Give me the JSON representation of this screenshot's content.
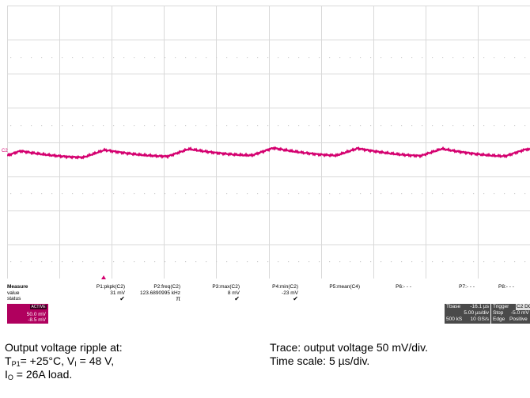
{
  "scope": {
    "channel_marker": "C2",
    "trace_color": "#d4006f",
    "grid_color": "#d9d9d9",
    "trigger_marker_color": "#d4006f"
  },
  "measure": {
    "header": "Measure",
    "row_labels": [
      "value",
      "status"
    ],
    "params": [
      {
        "name": "P1:pkpk(C2)",
        "value": "31 mV",
        "status": "✔"
      },
      {
        "name": "P2:freq(C2)",
        "value": "123.6890995 kHz",
        "status": "π"
      },
      {
        "name": "P3:max(C2)",
        "value": "8 mV",
        "status": "✔"
      },
      {
        "name": "P4:min(C2)",
        "value": "-23 mV",
        "status": "✔"
      },
      {
        "name": "P5:mean(C4)",
        "value": "",
        "status": ""
      },
      {
        "name": "P6:- - -",
        "value": "",
        "status": ""
      },
      {
        "name": "P7:- - -",
        "value": "",
        "status": ""
      },
      {
        "name": "P8:- - -",
        "value": "",
        "status": ""
      }
    ]
  },
  "channel_box": {
    "tag": "ACTIVE",
    "volts_div": "50.0 mV",
    "offset": "-8.5 mV",
    "color": "#b0005e"
  },
  "timebase": {
    "label": "Tbase",
    "delay": "-16.1 µs",
    "time_div": "5.00 µs/div",
    "samples": "500 kS",
    "rate": "10 GS/s"
  },
  "trigger": {
    "label": "Trigger",
    "channel": "C2 DC",
    "mode": "Stop",
    "level": "-5.0 mV",
    "type": "Edge",
    "slope": "Positive"
  },
  "caption": {
    "left_line1": "Output voltage ripple at:",
    "left_line2_pre": "T",
    "left_line2_sub": "P1",
    "left_line2_mid": "= +25°C, V",
    "left_line2_sub2": "I",
    "left_line2_post": " = 48 V,",
    "left_line3_pre": "I",
    "left_line3_sub": "O",
    "left_line3_post": " = 26A load.",
    "right_line1": "Trace: output voltage 50 mV/div.",
    "right_line2": "Time scale: 5 µs/div."
  }
}
